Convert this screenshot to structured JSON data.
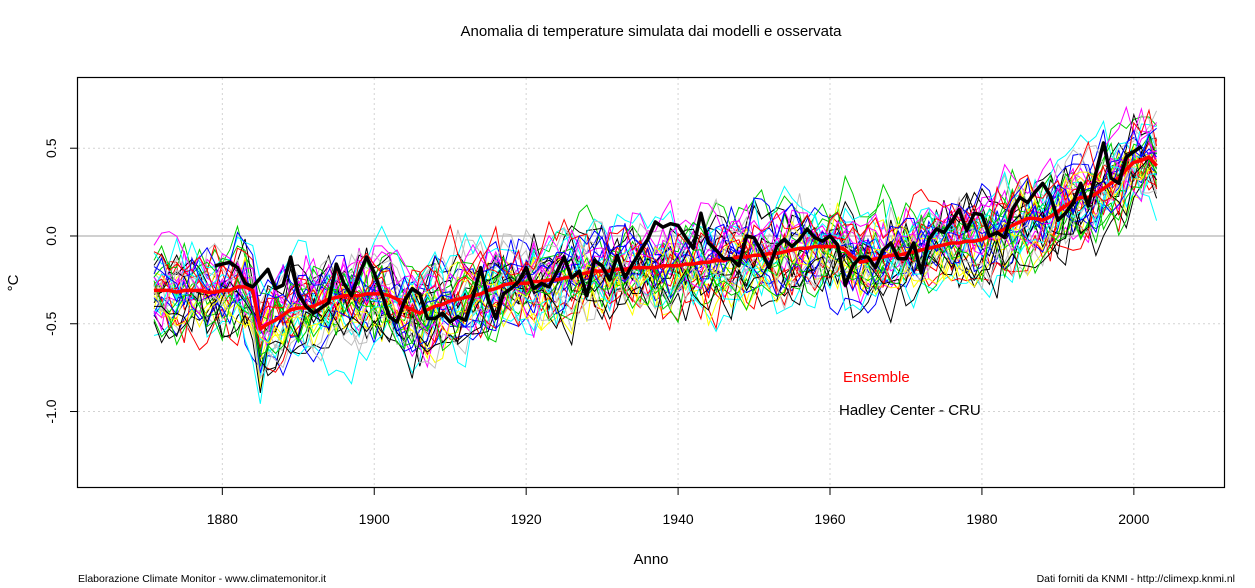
{
  "chart_data": {
    "type": "line",
    "title": "Anomalia di temperature simulata dai modelli e osservata",
    "xlabel": "Anno",
    "ylabel": "°C",
    "xlim": [
      1861,
      2012
    ],
    "ylim": [
      -1.43,
      0.9
    ],
    "x_ticks": [
      1880,
      1900,
      1920,
      1940,
      1960,
      1980,
      2000
    ],
    "x_tick_labels": [
      "1880",
      "1900",
      "1920",
      "1940",
      "1960",
      "1980",
      "2000"
    ],
    "y_ticks": [
      0.5,
      0.0,
      -0.5,
      -1.0
    ],
    "y_tick_labels": [
      "0.5",
      "0.0",
      "-0.5",
      "-1.0"
    ],
    "grid": true,
    "reference_line": 0.0,
    "legend": {
      "placement": "bottom-right",
      "entries": [
        {
          "label": "Ensemble",
          "color": "#ff0000"
        },
        {
          "label": "Hadley Center - CRU",
          "color": "#000000"
        }
      ]
    },
    "series": [
      {
        "name": "Ensemble",
        "color": "#ff0000",
        "x_start": 1871,
        "values": [
          -0.31,
          -0.31,
          -0.31,
          -0.32,
          -0.31,
          -0.31,
          -0.31,
          -0.32,
          -0.32,
          -0.31,
          -0.31,
          -0.29,
          -0.29,
          -0.31,
          -0.53,
          -0.5,
          -0.48,
          -0.45,
          -0.42,
          -0.41,
          -0.41,
          -0.4,
          -0.38,
          -0.36,
          -0.35,
          -0.34,
          -0.34,
          -0.34,
          -0.33,
          -0.33,
          -0.33,
          -0.34,
          -0.36,
          -0.4,
          -0.42,
          -0.44,
          -0.42,
          -0.4,
          -0.39,
          -0.37,
          -0.36,
          -0.35,
          -0.34,
          -0.33,
          -0.31,
          -0.3,
          -0.28,
          -0.27,
          -0.27,
          -0.27,
          -0.26,
          -0.26,
          -0.25,
          -0.25,
          -0.24,
          -0.23,
          -0.22,
          -0.21,
          -0.2,
          -0.2,
          -0.2,
          -0.19,
          -0.19,
          -0.18,
          -0.18,
          -0.18,
          -0.18,
          -0.17,
          -0.17,
          -0.17,
          -0.16,
          -0.16,
          -0.15,
          -0.15,
          -0.14,
          -0.14,
          -0.13,
          -0.12,
          -0.12,
          -0.11,
          -0.11,
          -0.1,
          -0.1,
          -0.09,
          -0.08,
          -0.07,
          -0.07,
          -0.06,
          -0.06,
          -0.06,
          -0.06,
          -0.08,
          -0.12,
          -0.15,
          -0.14,
          -0.13,
          -0.12,
          -0.11,
          -0.11,
          -0.1,
          -0.09,
          -0.08,
          -0.07,
          -0.06,
          -0.05,
          -0.04,
          -0.04,
          -0.03,
          -0.03,
          -0.02,
          0.0,
          0.02,
          0.04,
          0.06,
          0.08,
          0.1,
          0.1,
          0.09,
          0.11,
          0.14,
          0.17,
          0.2,
          0.22,
          0.22,
          0.24,
          0.27,
          0.3,
          0.33,
          0.38,
          0.42,
          0.43,
          0.45,
          0.4
        ]
      },
      {
        "name": "Hadley Center - CRU",
        "color": "#000000",
        "x_start": 1879,
        "values": [
          -0.17,
          -0.16,
          -0.15,
          -0.18,
          -0.27,
          -0.29,
          -0.24,
          -0.19,
          -0.3,
          -0.28,
          -0.12,
          -0.33,
          -0.4,
          -0.44,
          -0.41,
          -0.38,
          -0.16,
          -0.27,
          -0.34,
          -0.22,
          -0.12,
          -0.21,
          -0.33,
          -0.46,
          -0.49,
          -0.37,
          -0.3,
          -0.33,
          -0.47,
          -0.47,
          -0.44,
          -0.49,
          -0.46,
          -0.48,
          -0.35,
          -0.18,
          -0.36,
          -0.47,
          -0.33,
          -0.3,
          -0.26,
          -0.18,
          -0.3,
          -0.27,
          -0.29,
          -0.21,
          -0.12,
          -0.24,
          -0.2,
          -0.34,
          -0.14,
          -0.17,
          -0.25,
          -0.11,
          -0.24,
          -0.16,
          -0.09,
          -0.02,
          0.08,
          0.05,
          0.07,
          0.06,
          -0.01,
          -0.07,
          0.13,
          -0.04,
          -0.08,
          -0.13,
          -0.13,
          -0.17,
          0.0,
          -0.01,
          -0.09,
          -0.18,
          -0.06,
          -0.02,
          -0.06,
          -0.02,
          0.04,
          -0.01,
          -0.03,
          0.0,
          -0.05,
          -0.28,
          -0.17,
          -0.12,
          -0.12,
          -0.18,
          -0.08,
          -0.04,
          -0.13,
          -0.13,
          -0.04,
          -0.21,
          -0.02,
          0.04,
          0.02,
          0.08,
          0.15,
          0.03,
          0.13,
          0.12,
          0.0,
          0.02,
          -0.01,
          0.15,
          0.22,
          0.19,
          0.25,
          0.3,
          0.23,
          0.09,
          0.13,
          0.19,
          0.3,
          0.17,
          0.36,
          0.53,
          0.33,
          0.3,
          0.45,
          0.48,
          0.51
        ]
      }
    ],
    "model_runs": {
      "count": 44,
      "x_start": 1871,
      "x_end": 2003,
      "colors": [
        "#000000",
        "#ff0000",
        "#00cd00",
        "#0000ff",
        "#00ffff",
        "#ff00ff",
        "#ffff00",
        "#bebebe"
      ]
    }
  },
  "legend_labels": {
    "ensemble": "Ensemble",
    "hadley": "Hadley Center - CRU"
  },
  "footer": {
    "left": "Elaborazione Climate Monitor - www.climatemonitor.it",
    "right": "Dati forniti da KNMI - http://climexp.knmi.nl"
  }
}
